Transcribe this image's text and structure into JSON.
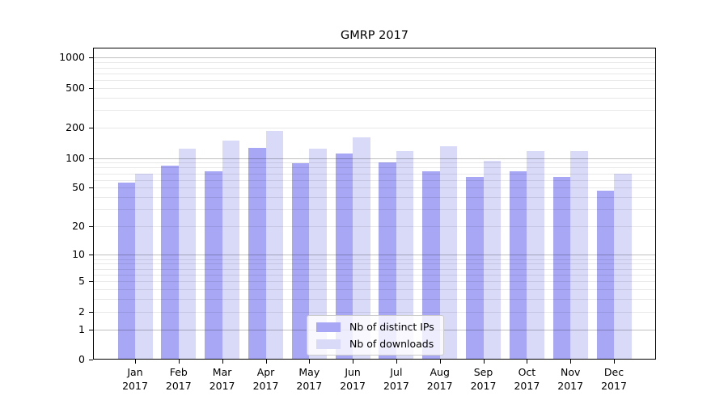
{
  "figure": {
    "title": "GMRP 2017"
  },
  "chart_data": {
    "type": "bar",
    "title": "GMRP 2017",
    "categories": [
      "Jan",
      "Feb",
      "Mar",
      "Apr",
      "May",
      "Jun",
      "Jul",
      "Aug",
      "Sep",
      "Oct",
      "Nov",
      "Dec"
    ],
    "x_sublabel": "2017",
    "series": [
      {
        "name": "Nb of distinct IPs",
        "color": "#a7a7f6",
        "values": [
          57,
          83,
          74,
          127,
          89,
          111,
          91,
          73,
          65,
          73,
          64,
          47
        ]
      },
      {
        "name": "Nb of downloads",
        "color": "#d9d9f8",
        "values": [
          70,
          125,
          150,
          185,
          123,
          161,
          118,
          131,
          93,
          118,
          118,
          70
        ]
      }
    ],
    "yscale": "log1p",
    "yticks": [
      0,
      1,
      2,
      5,
      10,
      20,
      50,
      100,
      200,
      500,
      1000
    ],
    "ylim": [
      0,
      1259
    ],
    "grid": true,
    "legend_position": "lower center"
  }
}
